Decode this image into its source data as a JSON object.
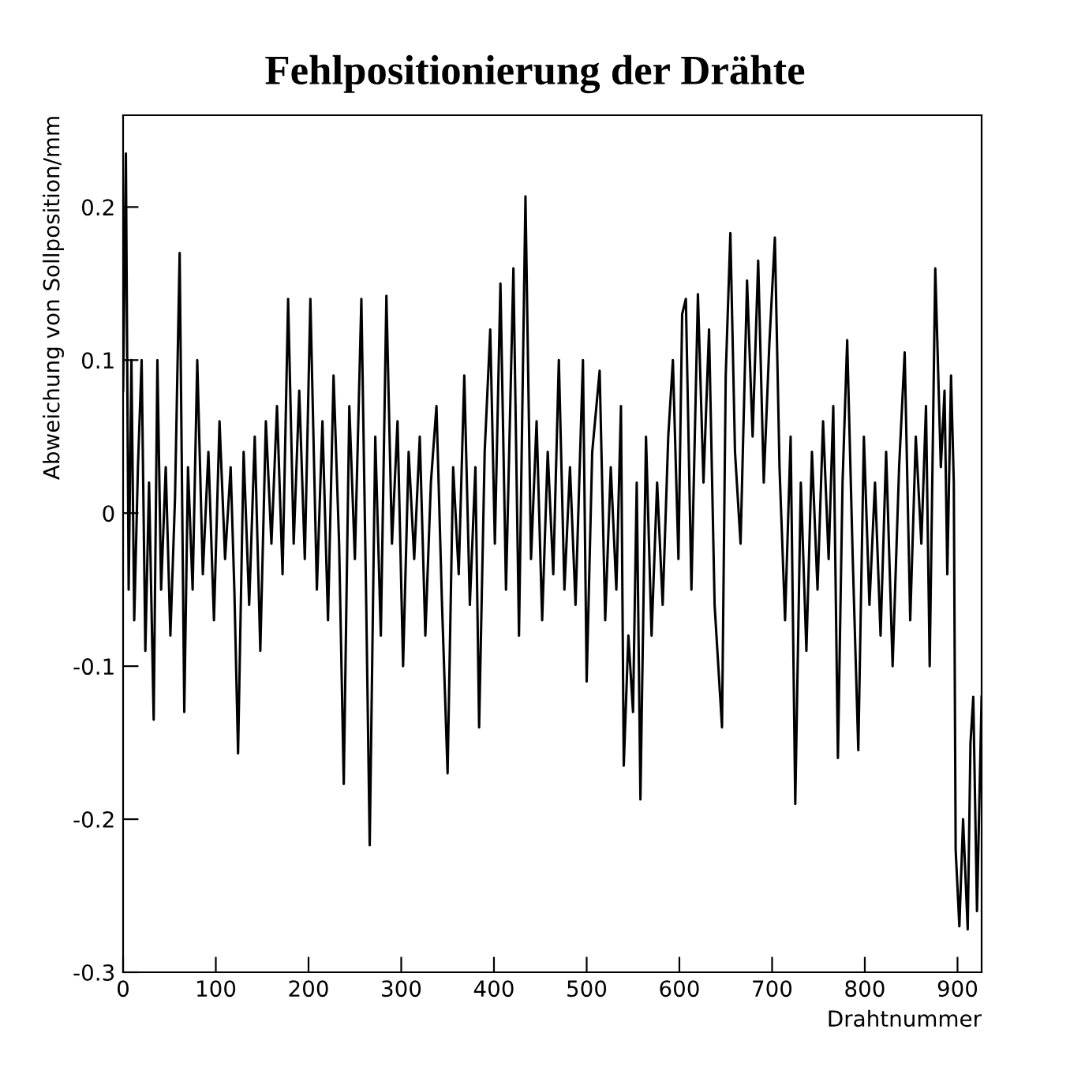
{
  "chart_data": {
    "type": "line",
    "title": "Fehlpositionierung der Drähte",
    "xlabel": "Drahtnummer",
    "ylabel": "Abweichung von Sollposition/mm",
    "xlim": [
      0,
      926
    ],
    "ylim": [
      -0.3,
      0.26
    ],
    "xticks": [
      0,
      100,
      200,
      300,
      400,
      500,
      600,
      700,
      800,
      900
    ],
    "yticks": [
      -0.3,
      -0.2,
      -0.1,
      0,
      0.1,
      0.2
    ],
    "grid": false,
    "legend": false,
    "marker": "none",
    "line_style": "solid",
    "series": [
      {
        "color": "#000000",
        "x": [
          0,
          3,
          6,
          9,
          12,
          16,
          20,
          24,
          28,
          33,
          37,
          41,
          46,
          51,
          56,
          61,
          66,
          70,
          75,
          80,
          86,
          92,
          98,
          104,
          110,
          116,
          120,
          124,
          130,
          136,
          142,
          148,
          154,
          160,
          166,
          172,
          178,
          184,
          190,
          196,
          202,
          209,
          215,
          221,
          227,
          233,
          238,
          244,
          250,
          257,
          262,
          266,
          272,
          278,
          284,
          290,
          296,
          302,
          308,
          314,
          320,
          326,
          332,
          338,
          344,
          350,
          356,
          362,
          368,
          374,
          380,
          384,
          390,
          396,
          401,
          407,
          413,
          421,
          427,
          434,
          440,
          446,
          452,
          458,
          464,
          470,
          476,
          482,
          488,
          496,
          500,
          506,
          514,
          520,
          526,
          532,
          537,
          540,
          545,
          550,
          554,
          558,
          564,
          570,
          576,
          582,
          588,
          593,
          599,
          603,
          607,
          613,
          620,
          626,
          632,
          638,
          646,
          650,
          655,
          660,
          666,
          673,
          679,
          685,
          691,
          697,
          703,
          708,
          714,
          720,
          725,
          731,
          737,
          743,
          749,
          755,
          761,
          766,
          771,
          776,
          781,
          787,
          793,
          799,
          805,
          811,
          817,
          823,
          830,
          837,
          843,
          849,
          855,
          861,
          866,
          870,
          876,
          882,
          886,
          889,
          893,
          896,
          898,
          902,
          906,
          911,
          914,
          917,
          921,
          926
        ],
        "values": [
          0.08,
          0.235,
          -0.05,
          0.1,
          -0.07,
          0.03,
          0.1,
          -0.09,
          0.02,
          -0.135,
          0.1,
          -0.05,
          0.03,
          -0.08,
          0.01,
          0.17,
          -0.13,
          0.03,
          -0.05,
          0.1,
          -0.04,
          0.04,
          -0.07,
          0.06,
          -0.03,
          0.03,
          -0.05,
          -0.157,
          0.04,
          -0.06,
          0.05,
          -0.09,
          0.06,
          -0.02,
          0.07,
          -0.04,
          0.14,
          -0.02,
          0.08,
          -0.03,
          0.14,
          -0.05,
          0.06,
          -0.07,
          0.09,
          -0.02,
          -0.177,
          0.07,
          -0.03,
          0.14,
          -0.05,
          -0.217,
          0.05,
          -0.08,
          0.142,
          -0.02,
          0.06,
          -0.1,
          0.04,
          -0.03,
          0.05,
          -0.08,
          0.02,
          0.07,
          -0.06,
          -0.17,
          0.03,
          -0.04,
          0.09,
          -0.06,
          0.03,
          -0.14,
          0.04,
          0.12,
          -0.02,
          0.15,
          -0.05,
          0.16,
          -0.08,
          0.207,
          -0.03,
          0.06,
          -0.07,
          0.04,
          -0.04,
          0.1,
          -0.05,
          0.03,
          -0.06,
          0.1,
          -0.11,
          0.04,
          0.093,
          -0.07,
          0.03,
          -0.05,
          0.07,
          -0.165,
          -0.08,
          -0.13,
          0.02,
          -0.187,
          0.05,
          -0.08,
          0.02,
          -0.06,
          0.05,
          0.1,
          -0.03,
          0.13,
          0.14,
          -0.05,
          0.143,
          0.02,
          0.12,
          -0.06,
          -0.14,
          0.09,
          0.183,
          0.04,
          -0.02,
          0.152,
          0.05,
          0.165,
          0.02,
          0.11,
          0.18,
          0.03,
          -0.07,
          0.05,
          -0.19,
          0.02,
          -0.09,
          0.04,
          -0.05,
          0.06,
          -0.03,
          0.07,
          -0.16,
          0.02,
          0.113,
          -0.03,
          -0.155,
          0.05,
          -0.06,
          0.02,
          -0.08,
          0.04,
          -0.1,
          0.03,
          0.105,
          -0.07,
          0.05,
          -0.02,
          0.07,
          -0.1,
          0.16,
          0.03,
          0.08,
          -0.04,
          0.09,
          0.02,
          -0.22,
          -0.27,
          -0.2,
          -0.272,
          -0.15,
          -0.12,
          -0.26,
          -0.12
        ]
      }
    ]
  }
}
